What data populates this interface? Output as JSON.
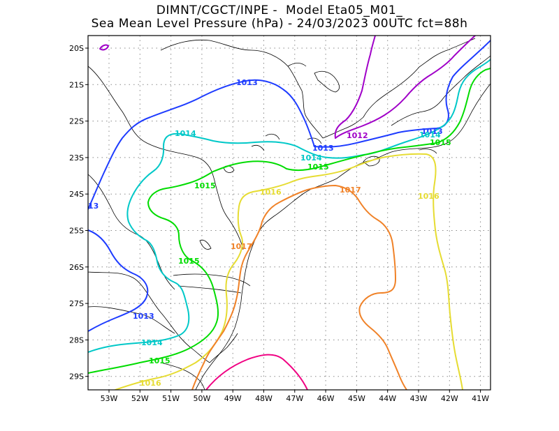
{
  "title": {
    "line1": "DIMNT/CGCT/INPE -  Model Eta05_M01_",
    "line2": "Sea Mean Level Pressure (hPa) - 24/03/2023 00UTC fct=88h"
  },
  "axes": {
    "lon_labels": [
      "53W",
      "52W",
      "51W",
      "50W",
      "49W",
      "48W",
      "47W",
      "46W",
      "45W",
      "44W",
      "43W",
      "42W",
      "41W"
    ],
    "lat_labels": [
      "20S",
      "21S",
      "22S",
      "23S",
      "24S",
      "25S",
      "26S",
      "27S",
      "28S",
      "29S"
    ]
  },
  "colors": {
    "c1012": "#a000c8",
    "c1013": "#1e3cff",
    "c1014": "#00c8c8",
    "c1015": "#00dc00",
    "c1016": "#e6dc32",
    "c1017": "#f08228",
    "c1018": "#f00082"
  },
  "contour_labels": [
    {
      "id": "c1012-a",
      "text": "1012"
    },
    {
      "id": "c1013-a",
      "text": "1013"
    },
    {
      "id": "c1013-b",
      "text": "1013"
    },
    {
      "id": "c1013-c",
      "text": "1013"
    },
    {
      "id": "c1013-d",
      "text": "1013"
    },
    {
      "id": "c1013-e",
      "text": "13"
    },
    {
      "id": "c1014-a",
      "text": "1014"
    },
    {
      "id": "c1014-b",
      "text": "1014"
    },
    {
      "id": "c1014-c",
      "text": "1014"
    },
    {
      "id": "c1014-d",
      "text": "1014"
    },
    {
      "id": "c1015-a",
      "text": "1015"
    },
    {
      "id": "c1015-b",
      "text": "1015"
    },
    {
      "id": "c1015-c",
      "text": "1015"
    },
    {
      "id": "c1015-d",
      "text": "1015"
    },
    {
      "id": "c1015-e",
      "text": "1015"
    },
    {
      "id": "c1016-a",
      "text": "1016"
    },
    {
      "id": "c1016-b",
      "text": "1016"
    },
    {
      "id": "c1016-c",
      "text": "1016"
    },
    {
      "id": "c1017-a",
      "text": "1017"
    },
    {
      "id": "c1017-b",
      "text": "1017"
    }
  ]
}
